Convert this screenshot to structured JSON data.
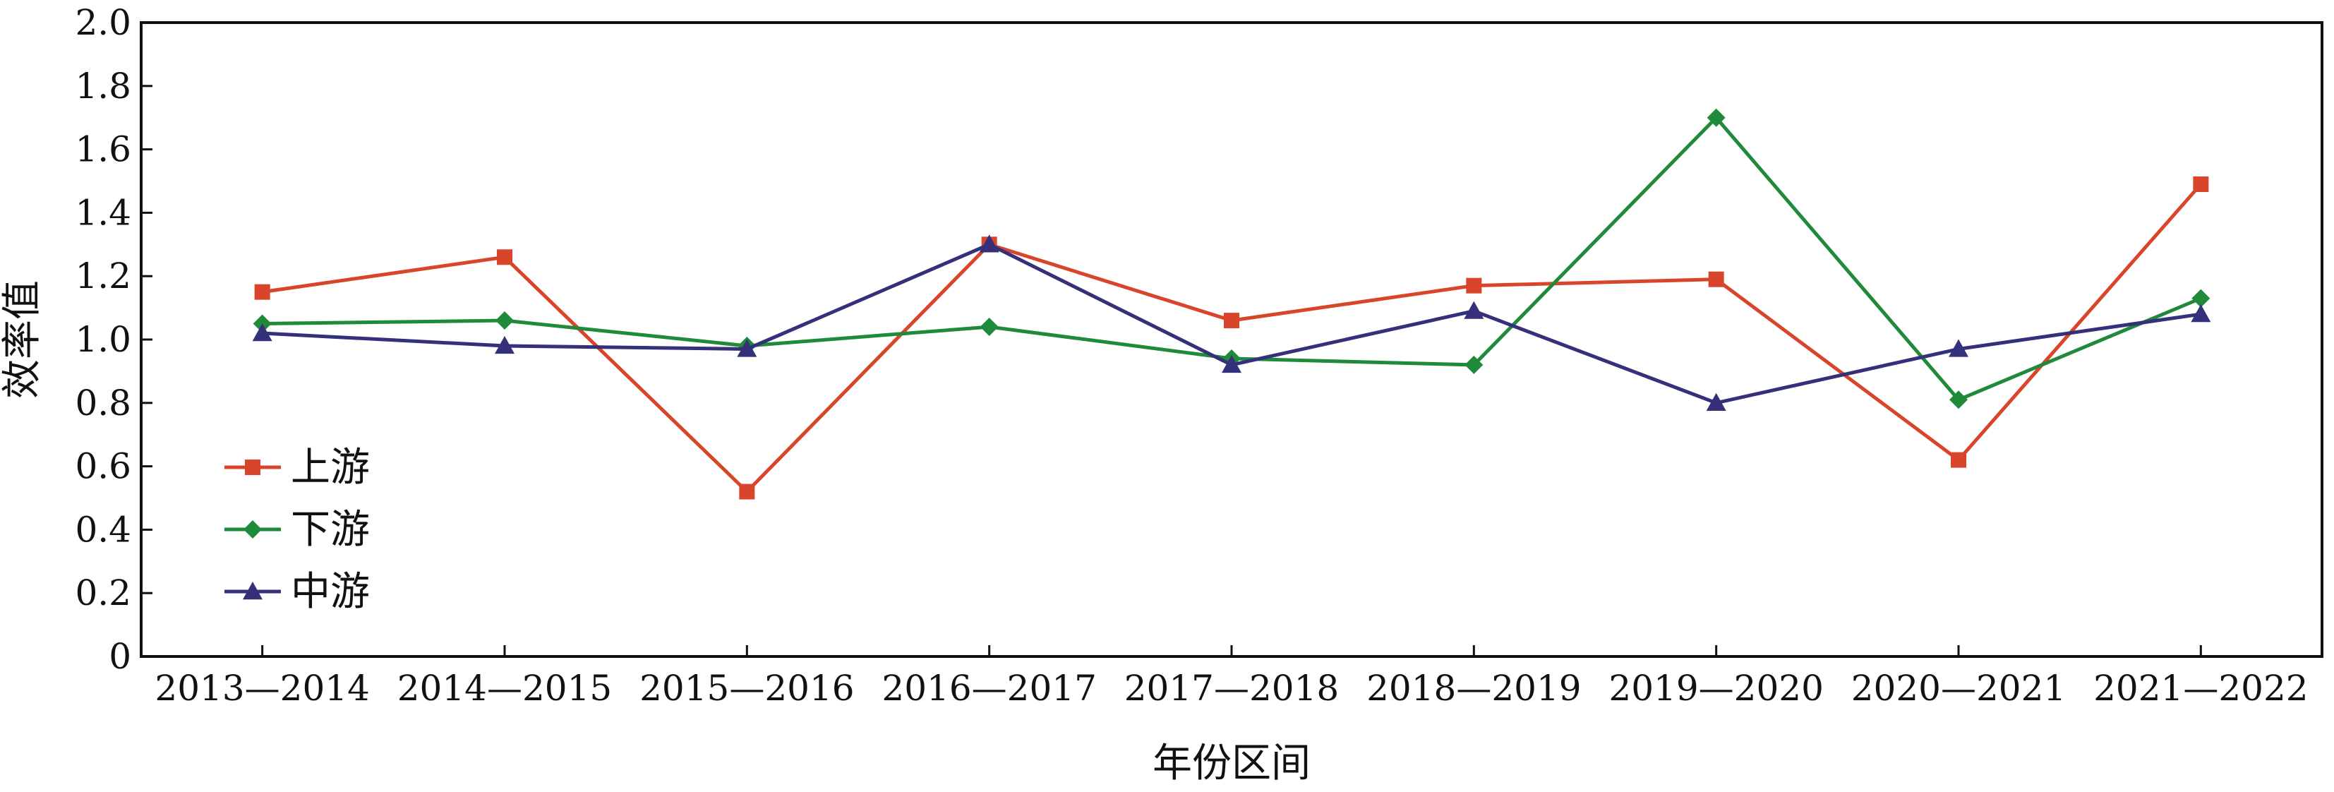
{
  "chart_data": {
    "type": "line",
    "categories": [
      "2013—2014",
      "2014—2015",
      "2015—2016",
      "2016—2017",
      "2017—2018",
      "2018—2019",
      "2019—2020",
      "2020—2021",
      "2021—2022"
    ],
    "series": [
      {
        "name": "上游",
        "color": "#d9452b",
        "marker": "square",
        "values": [
          1.15,
          1.26,
          0.52,
          1.3,
          1.06,
          1.17,
          1.19,
          0.62,
          1.49
        ]
      },
      {
        "name": "下游",
        "color": "#1f8a3a",
        "marker": "diamond",
        "values": [
          1.05,
          1.06,
          0.98,
          1.04,
          0.94,
          0.92,
          1.7,
          0.81,
          1.13
        ]
      },
      {
        "name": "中游",
        "color": "#34307a",
        "marker": "triangle",
        "values": [
          1.02,
          0.98,
          0.97,
          1.3,
          0.92,
          1.09,
          0.8,
          0.97,
          1.08
        ]
      }
    ],
    "xlabel": "年份区间",
    "ylabel": "效率值",
    "ylim": [
      0,
      2.0
    ],
    "yticks": [
      "0",
      "0.2",
      "0.4",
      "0.6",
      "0.8",
      "1.0",
      "1.2",
      "1.4",
      "1.6",
      "1.8",
      "2.0"
    ],
    "grid": false,
    "legend_position": "left-lower"
  }
}
